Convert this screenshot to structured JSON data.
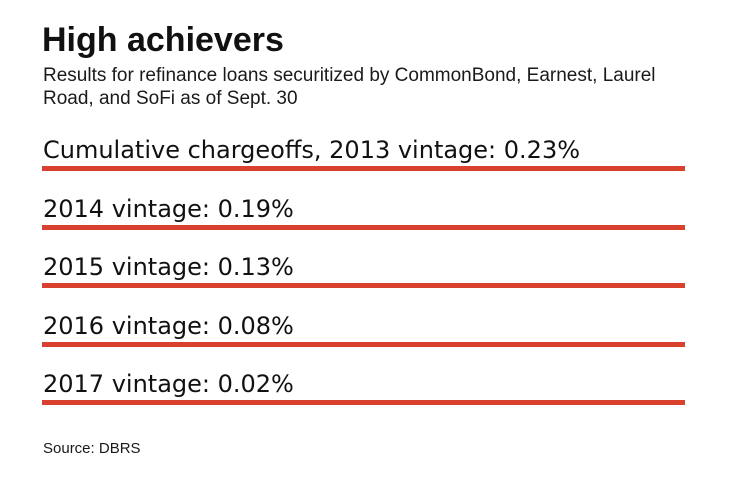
{
  "title": "High achievers",
  "subtitle": "Results for refinance loans securitized by CommonBond, Earnest, Laurel Road, and SoFi as of Sept. 30",
  "source": "Source: DBRS",
  "colors": {
    "bar": "#d9412f",
    "text": "#111111"
  },
  "chart_data": {
    "type": "table",
    "title": "High achievers",
    "subtitle": "Results for refinance loans securitized by CommonBond, Earnest, Laurel Road, and SoFi as of Sept. 30",
    "metric": "Cumulative chargeoffs",
    "categories": [
      "2013",
      "2014",
      "2015",
      "2016",
      "2017"
    ],
    "values": [
      0.23,
      0.19,
      0.13,
      0.08,
      0.02
    ],
    "unit": "%",
    "rows": [
      {
        "label": "Cumulative chargeoffs, 2013 vintage: 0.23%"
      },
      {
        "label": "2014 vintage: 0.19%"
      },
      {
        "label": "2015 vintage: 0.13%"
      },
      {
        "label": "2016 vintage: 0.08%"
      },
      {
        "label": "2017 vintage: 0.02%"
      }
    ],
    "source": "Source: DBRS"
  }
}
